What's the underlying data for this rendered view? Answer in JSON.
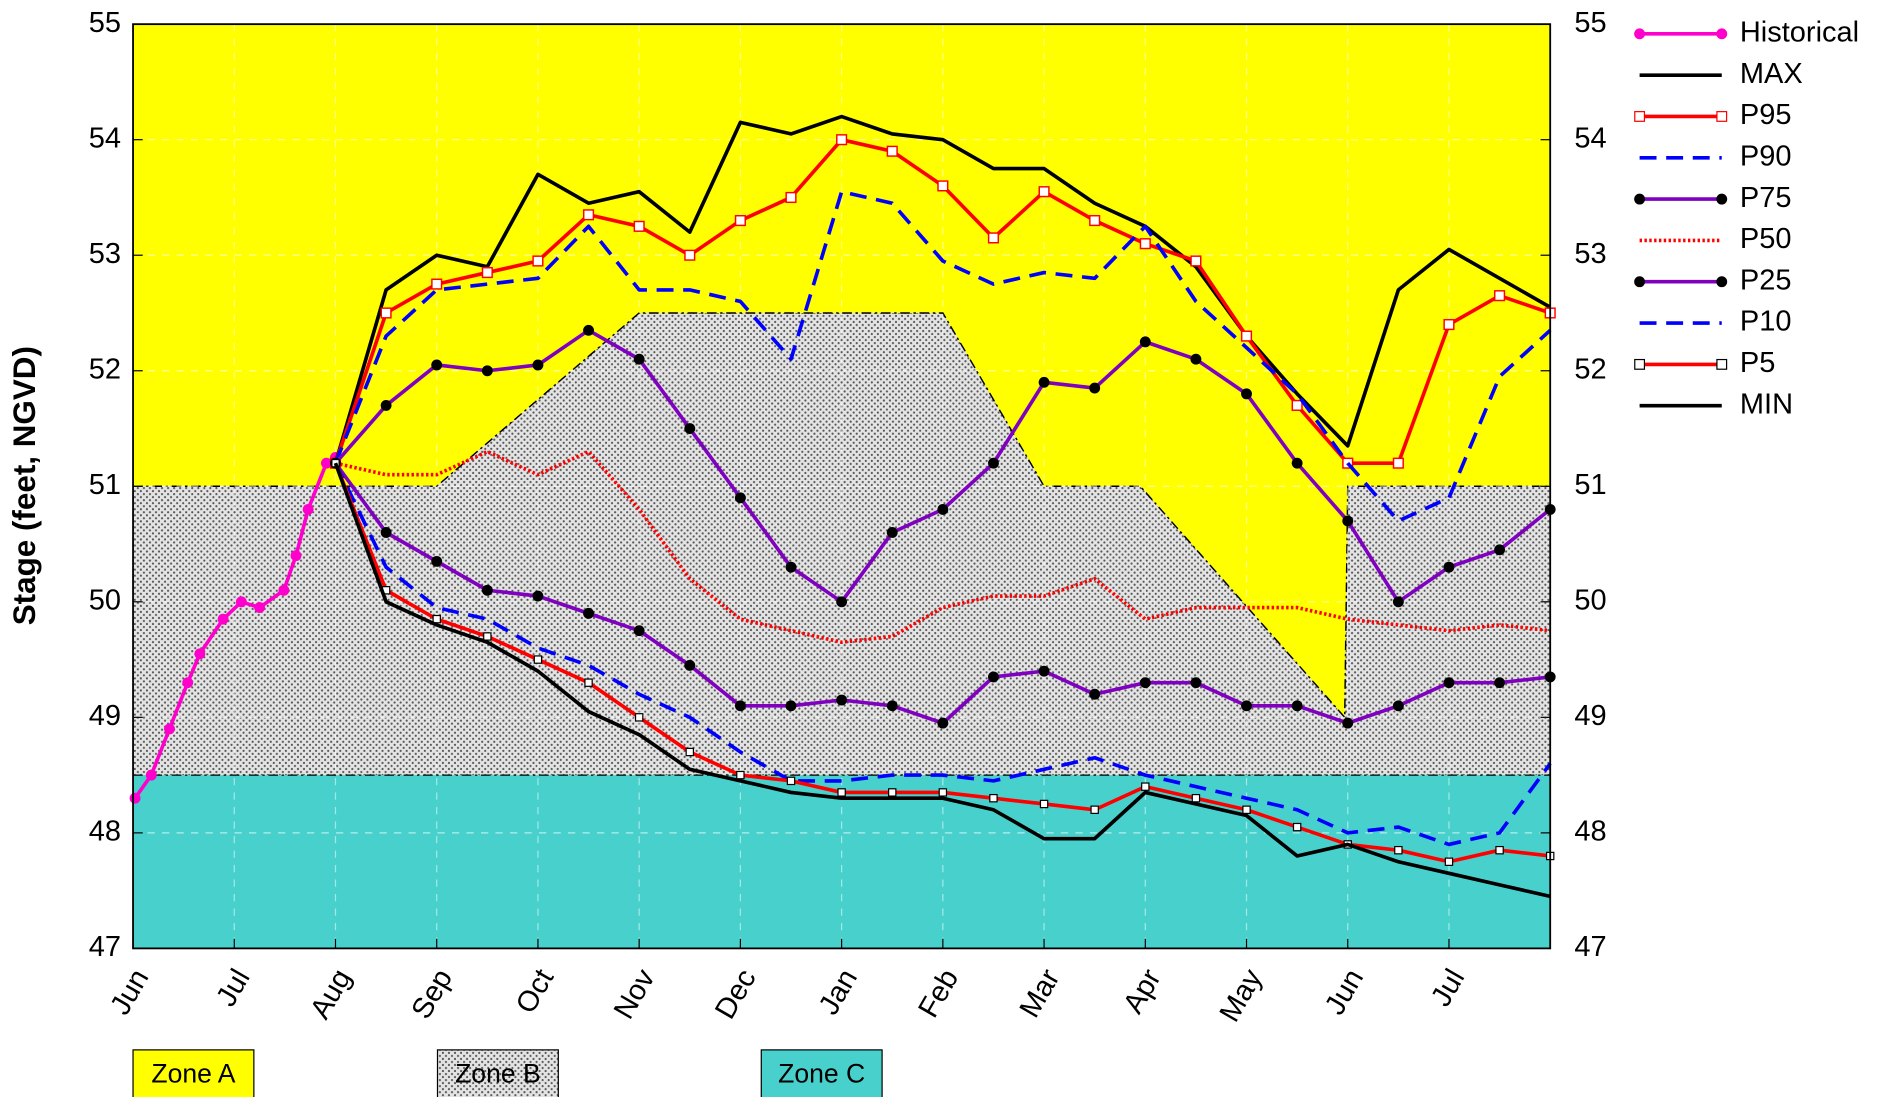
{
  "chart_data": {
    "type": "line",
    "ylabel": "Stage (feet, NGVD)",
    "xlim": [
      0,
      14
    ],
    "xticks": [
      {
        "value": 0,
        "label": "Jun"
      },
      {
        "value": 1,
        "label": "Jul"
      },
      {
        "value": 2,
        "label": "Aug"
      },
      {
        "value": 3,
        "label": "Sep"
      },
      {
        "value": 4,
        "label": "Oct"
      },
      {
        "value": 5,
        "label": "Nov"
      },
      {
        "value": 6,
        "label": "Dec"
      },
      {
        "value": 7,
        "label": "Jan"
      },
      {
        "value": 8,
        "label": "Feb"
      },
      {
        "value": 9,
        "label": "Mar"
      },
      {
        "value": 10,
        "label": "Apr"
      },
      {
        "value": 11,
        "label": "May"
      },
      {
        "value": 12,
        "label": "Jun"
      },
      {
        "value": 13,
        "label": "Jul"
      }
    ],
    "ylim": [
      47,
      55
    ],
    "yticks": [
      47,
      48,
      49,
      50,
      51,
      52,
      53,
      54,
      55
    ],
    "y2lim": [
      47,
      55
    ],
    "y2ticks": [
      47,
      48,
      49,
      50,
      51,
      52,
      53,
      54,
      55
    ],
    "grid": true,
    "legend": "right",
    "zones": [
      {
        "name": "Zone A",
        "color": "#ffff00"
      },
      {
        "name": "Zone B",
        "color": "#dcdcdc",
        "x": [
          0,
          3,
          5,
          8,
          9,
          9.95,
          11.97,
          12,
          14
        ],
        "upper": [
          51,
          51,
          52.5,
          52.5,
          51,
          51,
          49,
          51,
          51
        ],
        "lower": 48.5
      },
      {
        "name": "Zone C",
        "color": "#48d1cc",
        "upper": 48.5
      }
    ],
    "x": [
      2,
      2.5,
      3,
      3.5,
      4,
      4.5,
      5,
      5.5,
      6,
      6.5,
      7,
      7.5,
      8,
      8.5,
      9,
      9.5,
      10,
      10.5,
      11,
      11.5,
      12,
      12.5,
      13,
      13.5,
      14
    ],
    "series": [
      {
        "name": "Historical",
        "color": "#ff00cc",
        "style": "solid",
        "marker": "circle",
        "marker_color": "#ff00cc",
        "x": [
          0.02,
          0.18,
          0.36,
          0.54,
          0.66,
          0.89,
          1.07,
          1.25,
          1.49,
          1.61,
          1.73,
          1.91,
          2.0
        ],
        "values": [
          48.3,
          48.5,
          48.9,
          49.3,
          49.55,
          49.85,
          50.0,
          49.95,
          50.1,
          50.4,
          50.8,
          51.2,
          51.25
        ]
      },
      {
        "name": "MAX",
        "color": "#000000",
        "style": "solid",
        "values": [
          51.2,
          52.7,
          53.0,
          52.9,
          53.7,
          53.45,
          53.55,
          53.2,
          54.15,
          54.05,
          54.2,
          54.05,
          54.0,
          53.75,
          53.75,
          53.45,
          53.25,
          52.9,
          52.3,
          51.8,
          51.35,
          52.7,
          53.05,
          52.8,
          52.55
        ]
      },
      {
        "name": "P95",
        "color": "#ff0000",
        "style": "solid",
        "marker": "square",
        "marker_color": "#ff0000",
        "values": [
          51.2,
          52.5,
          52.75,
          52.85,
          52.95,
          53.35,
          53.25,
          53.0,
          53.3,
          53.5,
          54.0,
          53.9,
          53.6,
          53.15,
          53.55,
          53.3,
          53.1,
          52.95,
          52.3,
          51.7,
          51.2,
          51.2,
          52.4,
          52.65,
          52.5
        ]
      },
      {
        "name": "P90",
        "color": "#0000ff",
        "style": "dashed",
        "values": [
          51.2,
          52.3,
          52.7,
          52.75,
          52.8,
          53.25,
          52.7,
          52.7,
          52.6,
          52.1,
          53.55,
          53.45,
          52.95,
          52.75,
          52.85,
          52.8,
          53.25,
          52.6,
          52.2,
          51.8,
          51.2,
          50.7,
          50.9,
          51.95,
          52.35
        ]
      },
      {
        "name": "P75",
        "color": "#8000c0",
        "style": "solid",
        "marker": "circle",
        "marker_color": "#000000",
        "values": [
          51.2,
          51.7,
          52.05,
          52.0,
          52.05,
          52.35,
          52.1,
          51.5,
          50.9,
          50.3,
          50.0,
          50.6,
          50.8,
          51.2,
          51.9,
          51.85,
          52.25,
          52.1,
          51.8,
          51.2,
          50.7,
          50.0,
          50.3,
          50.45,
          50.8
        ]
      },
      {
        "name": "P50",
        "color": "#ff0000",
        "style": "dotted",
        "values": [
          51.2,
          51.1,
          51.1,
          51.3,
          51.1,
          51.3,
          50.8,
          50.2,
          49.85,
          49.75,
          49.65,
          49.7,
          49.95,
          50.05,
          50.05,
          50.2,
          49.85,
          49.95,
          49.95,
          49.95,
          49.85,
          49.8,
          49.75,
          49.8,
          49.75
        ]
      },
      {
        "name": "P25",
        "color": "#8000c0",
        "style": "solid",
        "marker": "circle",
        "marker_color": "#000000",
        "values": [
          51.2,
          50.6,
          50.35,
          50.1,
          50.05,
          49.9,
          49.75,
          49.45,
          49.1,
          49.1,
          49.15,
          49.1,
          48.95,
          49.35,
          49.4,
          49.2,
          49.3,
          49.3,
          49.1,
          49.1,
          48.95,
          49.1,
          49.3,
          49.3,
          49.35
        ]
      },
      {
        "name": "P10",
        "color": "#0000ff",
        "style": "dashed",
        "values": [
          51.2,
          50.3,
          49.95,
          49.85,
          49.6,
          49.45,
          49.2,
          49.0,
          48.7,
          48.45,
          48.45,
          48.5,
          48.5,
          48.45,
          48.55,
          48.65,
          48.5,
          48.4,
          48.3,
          48.2,
          48.0,
          48.05,
          47.9,
          48.0,
          48.6
        ]
      },
      {
        "name": "P5",
        "color": "#ff0000",
        "style": "solid",
        "marker": "small-square",
        "marker_color": "#000000",
        "values": [
          51.2,
          50.1,
          49.85,
          49.7,
          49.5,
          49.3,
          49.0,
          48.7,
          48.5,
          48.45,
          48.35,
          48.35,
          48.35,
          48.3,
          48.25,
          48.2,
          48.4,
          48.3,
          48.2,
          48.05,
          47.9,
          47.85,
          47.75,
          47.85,
          47.8
        ]
      },
      {
        "name": "MIN",
        "color": "#000000",
        "style": "solid",
        "values": [
          51.2,
          50.0,
          49.8,
          49.65,
          49.4,
          49.05,
          48.85,
          48.55,
          48.45,
          48.35,
          48.3,
          48.3,
          48.3,
          48.2,
          47.95,
          47.95,
          48.35,
          48.25,
          48.15,
          47.8,
          47.9,
          47.75,
          47.65,
          47.55,
          47.45
        ]
      }
    ]
  }
}
